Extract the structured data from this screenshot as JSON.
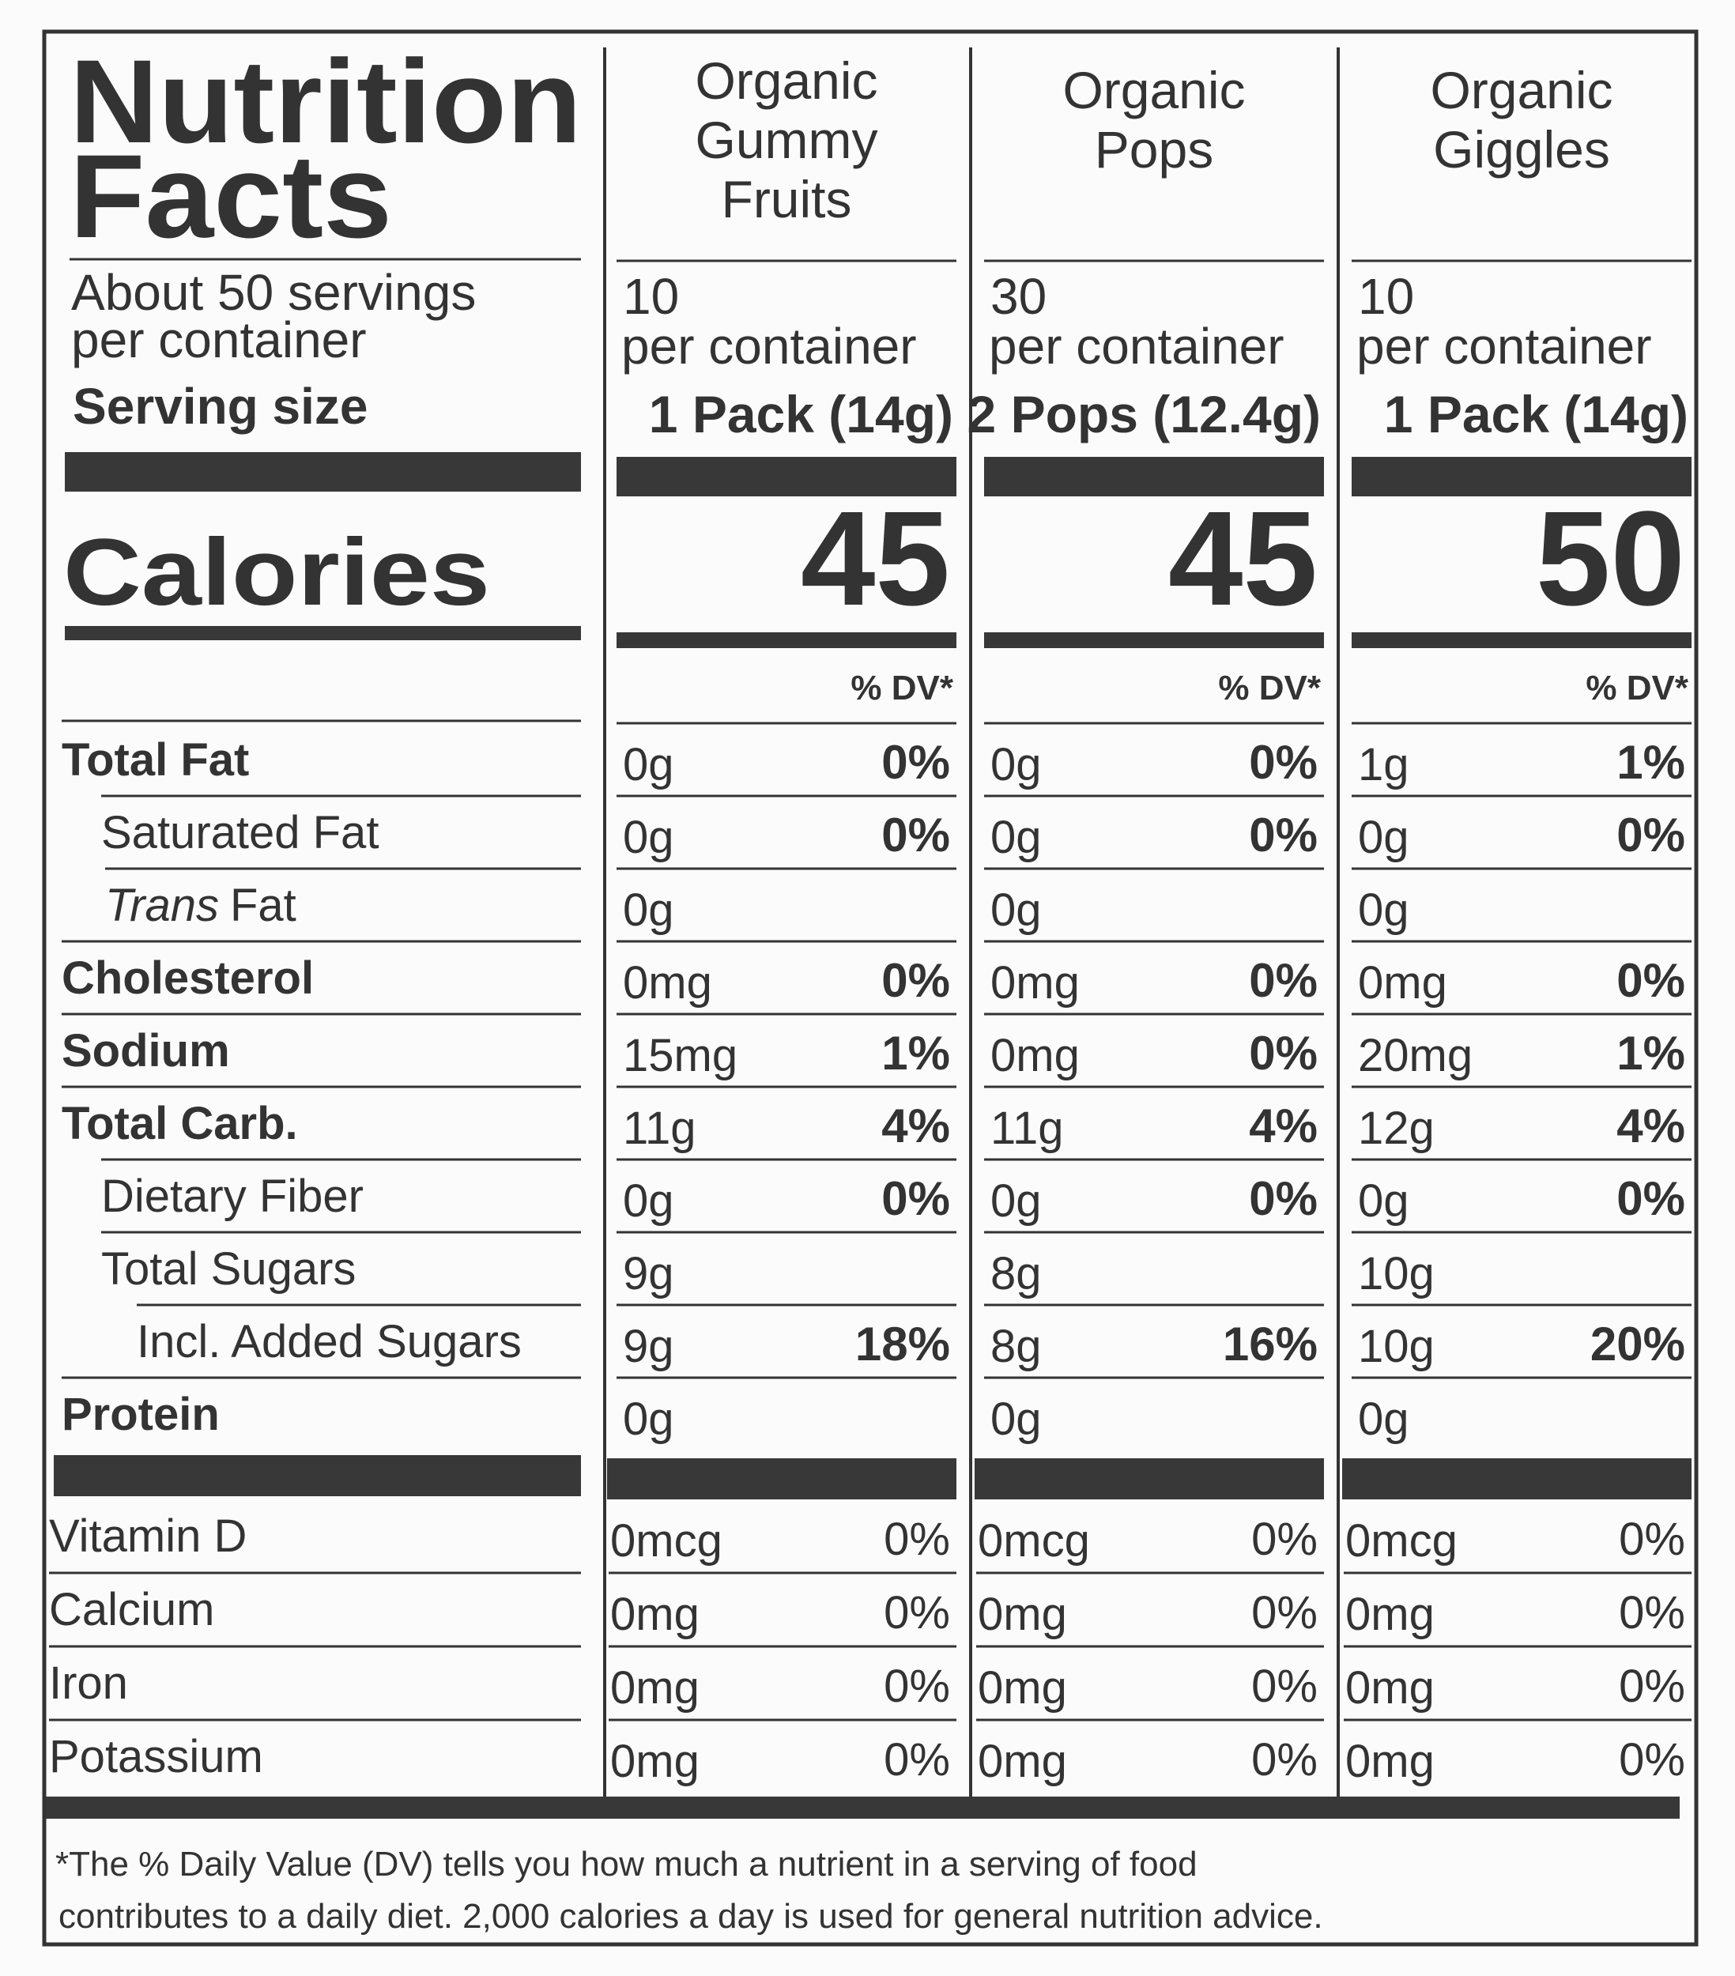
{
  "header": {
    "title": [
      "Nutrition",
      "Facts"
    ],
    "servings": [
      "About 50 servings",
      "per container"
    ],
    "serving_size_label": "Serving size",
    "calories_label": "Calories"
  },
  "products": [
    {
      "name": [
        "Organic",
        "Gummy",
        "Fruits"
      ],
      "servings": "10",
      "servings_unit": "per container",
      "serving_size": "1 Pack (14g)",
      "calories": 45,
      "dv_header": "% DV*",
      "nutrients": [
        [
          "0g",
          "0%"
        ],
        [
          "0g",
          "0%"
        ],
        [
          "0g"
        ],
        [
          "0mg",
          "0%"
        ],
        [
          "15mg",
          "1%"
        ],
        [
          "11g",
          "4%"
        ],
        [
          "0g",
          "0%"
        ],
        [
          "9g"
        ],
        [
          "9g",
          "18%"
        ],
        [
          "0g"
        ]
      ],
      "vitamins": [
        [
          "0mcg",
          "0%"
        ],
        [
          "0mg",
          "0%"
        ],
        [
          "0mg",
          "0%"
        ],
        [
          "0mg",
          "0%"
        ]
      ]
    },
    {
      "name": [
        "Organic",
        "Pops"
      ],
      "servings": "30",
      "servings_unit": "per container",
      "serving_size": "2 Pops (12.4g)",
      "calories": 45,
      "dv_header": "% DV*",
      "nutrients": [
        [
          "0g",
          "0%"
        ],
        [
          "0g",
          "0%"
        ],
        [
          "0g"
        ],
        [
          "0mg",
          "0%"
        ],
        [
          "0mg",
          "0%"
        ],
        [
          "11g",
          "4%"
        ],
        [
          "0g",
          "0%"
        ],
        [
          "8g"
        ],
        [
          "8g",
          "16%"
        ],
        [
          "0g"
        ]
      ],
      "vitamins": [
        [
          "0mcg",
          "0%"
        ],
        [
          "0mg",
          "0%"
        ],
        [
          "0mg",
          "0%"
        ],
        [
          "0mg",
          "0%"
        ]
      ]
    },
    {
      "name": [
        "Organic",
        "Giggles"
      ],
      "servings": "10",
      "servings_unit": "per container",
      "serving_size": "1 Pack (14g)",
      "calories": 50,
      "dv_header": "% DV*",
      "nutrients": [
        [
          "1g",
          "1%"
        ],
        [
          "0g",
          "0%"
        ],
        [
          "0g"
        ],
        [
          "0mg",
          "0%"
        ],
        [
          "20mg",
          "1%"
        ],
        [
          "12g",
          "4%"
        ],
        [
          "0g",
          "0%"
        ],
        [
          "10g"
        ],
        [
          "10g",
          "20%"
        ],
        [
          "0g"
        ]
      ],
      "vitamins": [
        [
          "0mcg",
          "0%"
        ],
        [
          "0mg",
          "0%"
        ],
        [
          "0mg",
          "0%"
        ],
        [
          "0mg",
          "0%"
        ]
      ]
    }
  ],
  "nutrient_rows": [
    {
      "label": "Total Fat"
    },
    {
      "label": "Saturated Fat"
    },
    {
      "label_italic": "Trans",
      "label": "Fat"
    },
    {
      "label": "Cholesterol"
    },
    {
      "label": "Sodium"
    },
    {
      "label": "Total Carb."
    },
    {
      "label": "Dietary Fiber"
    },
    {
      "label": "Total Sugars"
    },
    {
      "label": "Incl. Added Sugars"
    },
    {
      "label": "Protein"
    }
  ],
  "vitamin_rows": [
    "Vitamin D",
    "Calcium",
    "Iron",
    "Potassium"
  ],
  "footnote": [
    "*The % Daily Value (DV) tells you how much a nutrient in a serving of food",
    "contributes to a daily diet. 2,000 calories a day is used for general nutrition advice."
  ]
}
